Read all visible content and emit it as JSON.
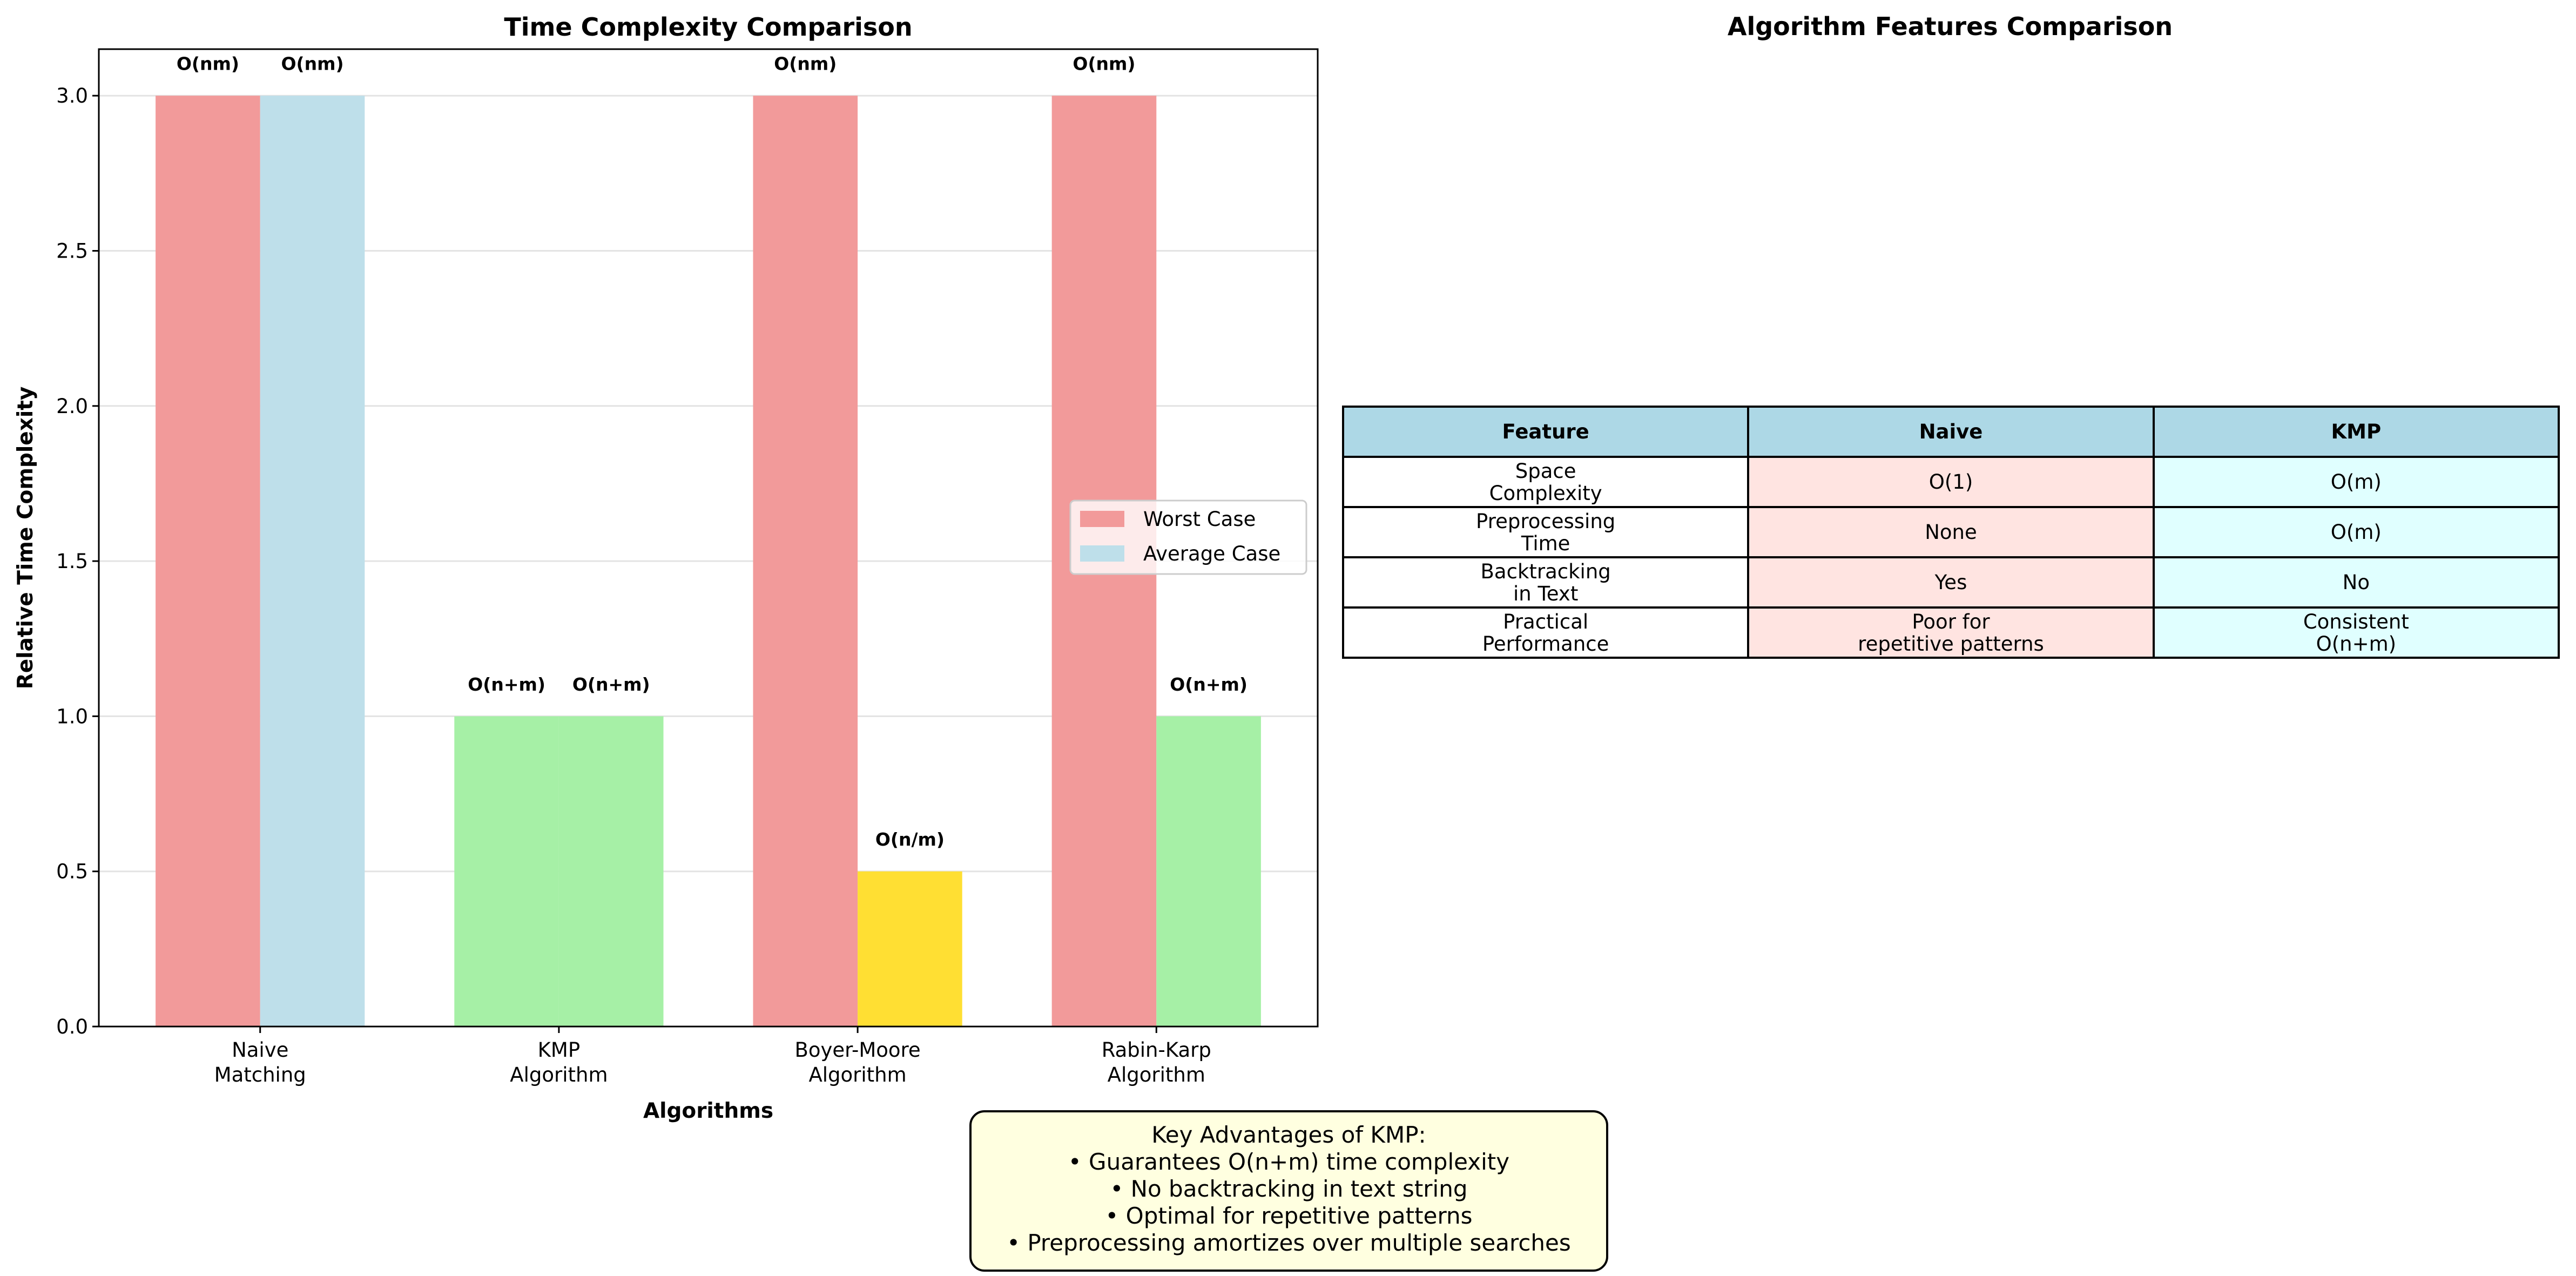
{
  "chart_data": [
    {
      "type": "bar",
      "title": "Time Complexity Comparison",
      "xlabel": "Algorithms",
      "ylabel": "Relative Time Complexity",
      "categories": [
        "Naive\nMatching",
        "KMP\nAlgorithm",
        "Boyer-Moore\nAlgorithm",
        "Rabin-Karp\nAlgorithm"
      ],
      "ylim": [
        0,
        3.15
      ],
      "yticks": [
        "0.0",
        "0.5",
        "1.0",
        "1.5",
        "2.0",
        "2.5",
        "3.0"
      ],
      "grid": "y",
      "legend_placement": "center-right",
      "series": [
        {
          "name": "Worst Case",
          "values": [
            3,
            1,
            3,
            3
          ],
          "labels": [
            "O(nm)",
            "O(n+m)",
            "O(nm)",
            "O(nm)"
          ],
          "colors": [
            "#F29A9A",
            "#A6F0A6",
            "#F29A9A",
            "#F29A9A"
          ]
        },
        {
          "name": "Average Case",
          "values": [
            3,
            1,
            0.5,
            1
          ],
          "labels": [
            "O(nm)",
            "O(n+m)",
            "O(n/m)",
            "O(n+m)"
          ],
          "colors": [
            "#BEDFEA",
            "#A6F0A6",
            "#FFDF33",
            "#A6F0A6"
          ]
        }
      ],
      "legend_colors": [
        "#F29A9A",
        "#BEDFEA"
      ]
    },
    {
      "type": "table",
      "title": "Algorithm Features Comparison",
      "columns": [
        "Feature",
        "Naive",
        "KMP"
      ],
      "rows": [
        [
          "Space\nComplexity",
          "O(1)",
          "O(m)"
        ],
        [
          "Preprocessing\nTime",
          "None",
          "O(m)"
        ],
        [
          "Backtracking\nin Text",
          "Yes",
          "No"
        ],
        [
          "Practical\nPerformance",
          "Poor for\nrepetitive patterns",
          "Consistent\nO(n+m)"
        ]
      ]
    }
  ],
  "advantages": {
    "title": "Key Advantages of KMP:",
    "items": [
      "• Guarantees O(n+m) time complexity",
      "• No backtracking in text string",
      "• Optimal for repetitive patterns",
      "• Preprocessing amortizes over multiple searches"
    ]
  }
}
